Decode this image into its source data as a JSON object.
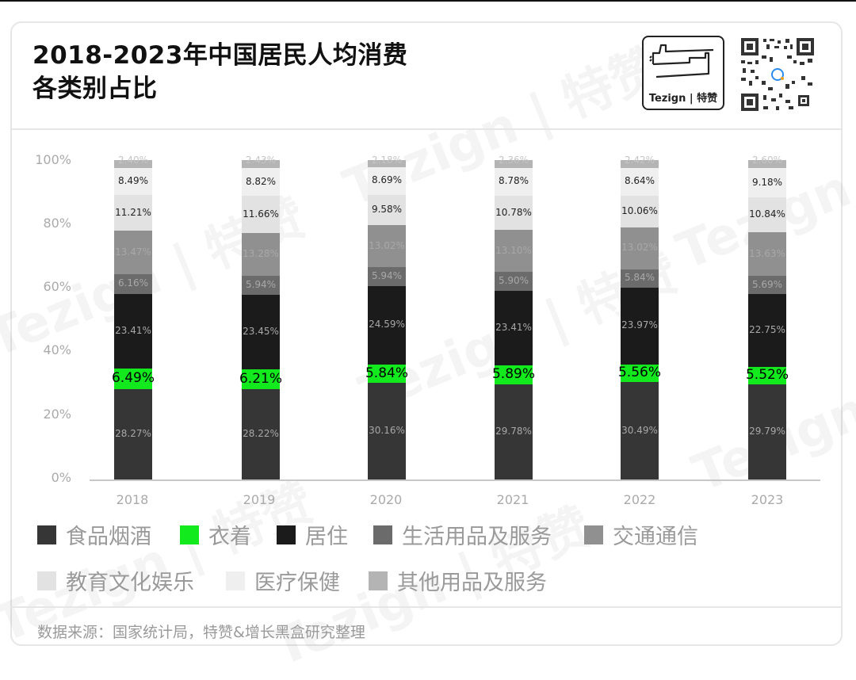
{
  "header": {
    "title_line1": "2018-2023年中国居民人均消费",
    "title_line2": "各类别占比",
    "logo_text": "Tezign | 特赞"
  },
  "footer": {
    "source": "数据来源：国家统计局，特赞&增长黑盒研究整理"
  },
  "watermark": "Tezign | 特赞",
  "chart_data": {
    "type": "bar",
    "stacked": true,
    "title": "2018-2023年中国居民人均消费各类别占比",
    "xlabel": "",
    "ylabel": "",
    "ylim": [
      0,
      100
    ],
    "yticks": [
      "0%",
      "20%",
      "40%",
      "60%",
      "80%",
      "100%"
    ],
    "grid": false,
    "legend_position": "bottom",
    "categories": [
      "2018",
      "2019",
      "2020",
      "2021",
      "2022",
      "2023"
    ],
    "series": [
      {
        "name": "食品烟酒",
        "color": "#363636",
        "label_color": "#a8a8a8",
        "values": [
          28.27,
          28.22,
          30.16,
          29.78,
          30.49,
          29.79
        ],
        "labels": [
          "28.27%",
          "28.22%",
          "30.16%",
          "29.78%",
          "30.49%",
          "29.79%"
        ]
      },
      {
        "name": "衣着",
        "color": "#12ea1e",
        "label_color": "#000000",
        "values": [
          6.49,
          6.21,
          5.84,
          5.89,
          5.56,
          5.52
        ],
        "labels": [
          "6.49%",
          "6.21%",
          "5.84%",
          "5.89%",
          "5.56%",
          "5.52%"
        ]
      },
      {
        "name": "居住",
        "color": "#1b1b1b",
        "label_color": "#a8a8a8",
        "values": [
          23.41,
          23.45,
          24.59,
          23.41,
          23.97,
          22.75
        ],
        "labels": [
          "23.41%",
          "23.45%",
          "24.59%",
          "23.41%",
          "23.97%",
          "22.75%"
        ]
      },
      {
        "name": "生活用品及服务",
        "color": "#6b6b6b",
        "label_color": "#a8a8a8",
        "values": [
          6.16,
          5.94,
          5.94,
          5.9,
          5.84,
          5.69
        ],
        "labels": [
          "6.16%",
          "5.94%",
          "5.94%",
          "5.90%",
          "5.84%",
          "5.69%"
        ]
      },
      {
        "name": "交通通信",
        "color": "#909090",
        "label_color": "#a8a8a8",
        "values": [
          13.47,
          13.28,
          13.02,
          13.1,
          13.02,
          13.63
        ],
        "labels": [
          "13.47%",
          "13.28%",
          "13.02%",
          "13.10%",
          "13.02%",
          "13.63%"
        ]
      },
      {
        "name": "教育文化娱乐",
        "color": "#e2e2e2",
        "label_color": "#222222",
        "values": [
          11.21,
          11.66,
          9.58,
          10.78,
          10.06,
          10.84
        ],
        "labels": [
          "11.21%",
          "11.66%",
          "9.58%",
          "10.78%",
          "10.06%",
          "10.84%"
        ]
      },
      {
        "name": "医疗保健",
        "color": "#efefef",
        "label_color": "#222222",
        "values": [
          8.49,
          8.82,
          8.69,
          8.78,
          8.64,
          9.18
        ],
        "labels": [
          "8.49%",
          "8.82%",
          "8.69%",
          "8.78%",
          "8.64%",
          "9.18%"
        ]
      },
      {
        "name": "其他用品及服务",
        "color": "#b4b4b4",
        "label_color": "#c4c4c4",
        "values": [
          2.4,
          2.43,
          2.18,
          2.36,
          2.42,
          2.6
        ],
        "labels": [
          "2.40%",
          "2.43%",
          "2.18%",
          "2.36%",
          "2.42%",
          "2.60%"
        ]
      }
    ]
  }
}
